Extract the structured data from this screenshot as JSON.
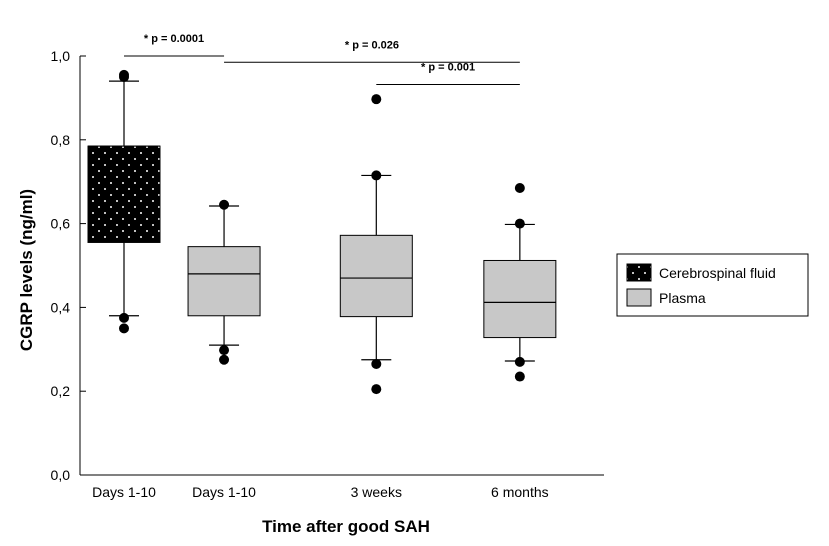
{
  "chart_data": {
    "type": "box",
    "xlabel": "Time after good SAH",
    "ylabel": "CGRP levels (ng/ml)",
    "ylim": [
      0,
      1.0
    ],
    "yticks": [
      "0,0",
      "0,2",
      "0,4",
      "0,6",
      "0,8",
      "1,0"
    ],
    "ytick_values": [
      0,
      0.2,
      0.4,
      0.6,
      0.8,
      1.0
    ],
    "legend": {
      "placement": "right",
      "entries": [
        {
          "label": "Cerebrospinal fluid",
          "fill": "#000000",
          "pattern": "dotted"
        },
        {
          "label": "Plasma",
          "fill": "#c8c8c8",
          "pattern": "none"
        }
      ]
    },
    "groups": [
      {
        "category": "Days 1-10",
        "series": "Cerebrospinal fluid",
        "x": 1.0,
        "whisker_low": 0.38,
        "q1": 0.555,
        "median": 0.785,
        "q3": 0.785,
        "whisker_high": 0.94,
        "outliers": [
          0.375,
          0.35,
          0.95,
          0.955
        ]
      },
      {
        "category": "Days 1-10",
        "series": "Plasma",
        "x": 2.15,
        "whisker_low": 0.31,
        "q1": 0.38,
        "median": 0.48,
        "q3": 0.545,
        "whisker_high": 0.642,
        "outliers": [
          0.298,
          0.275,
          0.645
        ]
      },
      {
        "category": "3 weeks",
        "series": "Plasma",
        "x": 3.9,
        "whisker_low": 0.275,
        "q1": 0.378,
        "median": 0.47,
        "q3": 0.572,
        "whisker_high": 0.715,
        "outliers": [
          0.265,
          0.205,
          0.715,
          0.897
        ]
      },
      {
        "category": "6 months",
        "series": "Plasma",
        "x": 5.55,
        "whisker_low": 0.272,
        "q1": 0.328,
        "median": 0.412,
        "q3": 0.512,
        "whisker_high": 0.598,
        "outliers": [
          0.27,
          0.235,
          0.6,
          0.685
        ]
      }
    ],
    "annotations": [
      {
        "text": "* p = 0.0001",
        "from": 1.0,
        "to": 2.15,
        "level": 1.0
      },
      {
        "text": "* p = 0.026",
        "from": 2.15,
        "to": 5.55,
        "level": 0.985
      },
      {
        "text": "* p = 0.001",
        "from": 3.9,
        "to": 5.55,
        "level": 0.932
      }
    ],
    "grid": false
  }
}
